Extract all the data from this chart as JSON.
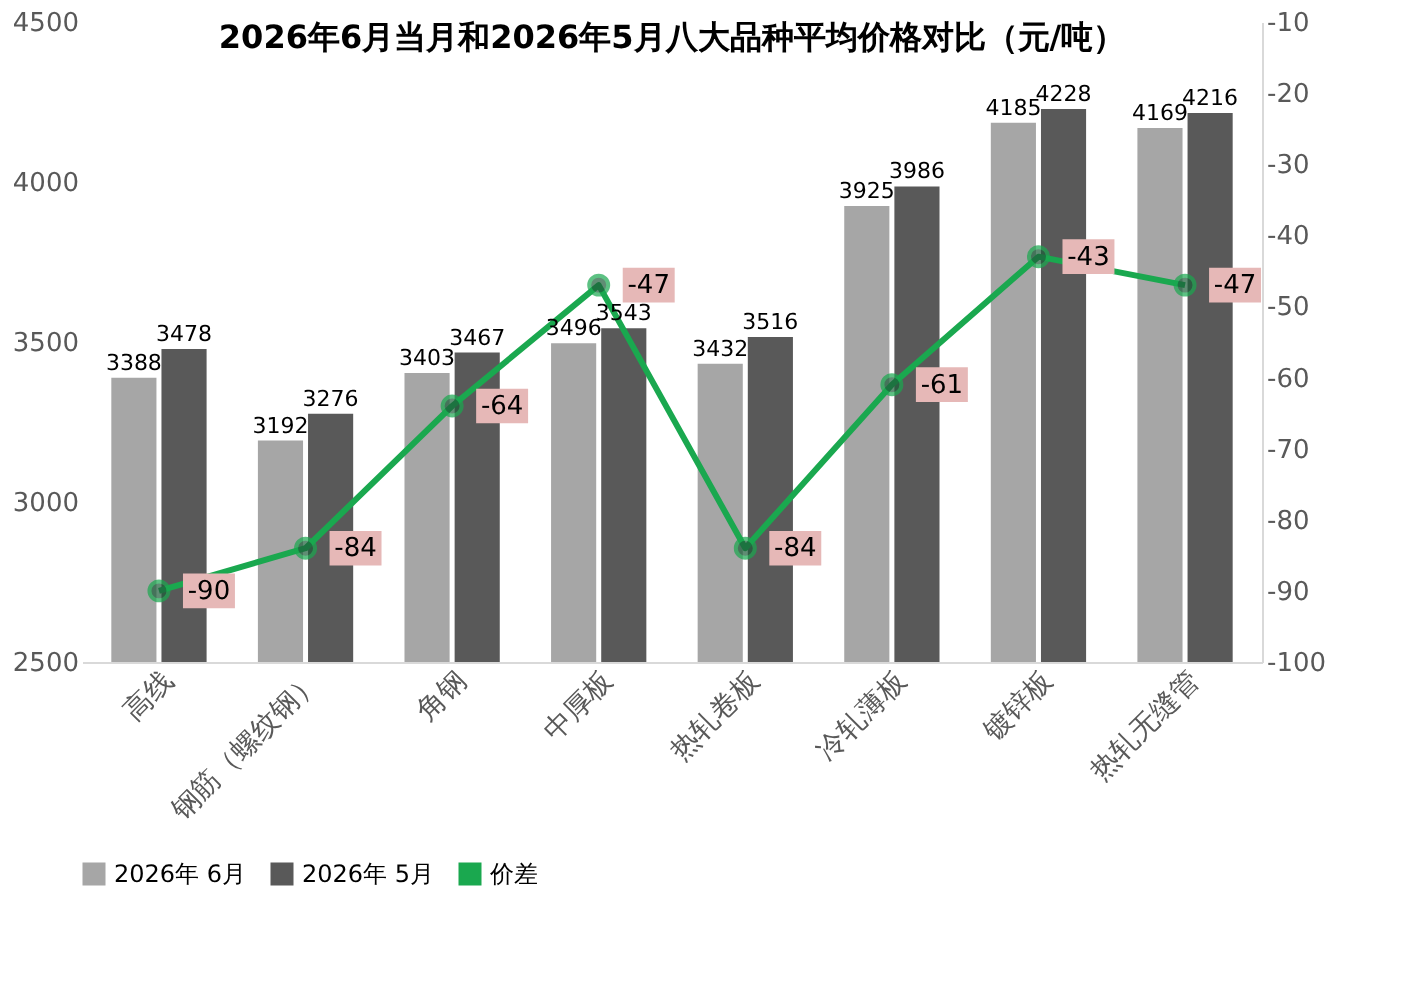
{
  "chart_data": {
    "type": "bar",
    "title": "2026年6月当月和2026年5月八大品种平均价格对比（元/吨）",
    "categories": [
      "高线",
      "钢筋（螺纹钢）",
      "角钢",
      "中厚板",
      "热轧卷板",
      "冷轧薄板",
      "镀锌板",
      "热轧无缝管"
    ],
    "series": [
      {
        "name": "2026年 6月",
        "color": "#a6a6a6",
        "values": [
          3388,
          3192,
          3403,
          3496,
          3432,
          3925,
          4185,
          4169
        ]
      },
      {
        "name": "2026年 5月",
        "color": "#595959",
        "values": [
          3478,
          3276,
          3467,
          3543,
          3516,
          3986,
          4228,
          4216
        ]
      },
      {
        "name": "价差",
        "type": "line",
        "axis": "y2",
        "color": "#1aa84f",
        "marker": "circle",
        "values": [
          -90,
          -84,
          -64,
          -47,
          -84,
          -61,
          -43,
          -47
        ]
      }
    ],
    "ylim": [
      2500,
      4500
    ],
    "yticks": [
      2500,
      3000,
      3500,
      4000,
      4500
    ],
    "y2lim": [
      -100,
      -10
    ],
    "y2ticks": [
      -100,
      -90,
      -80,
      -70,
      -60,
      -50,
      -40,
      -30,
      -20,
      -10
    ],
    "data_labels": true,
    "legend": "bottom",
    "grid": false
  }
}
